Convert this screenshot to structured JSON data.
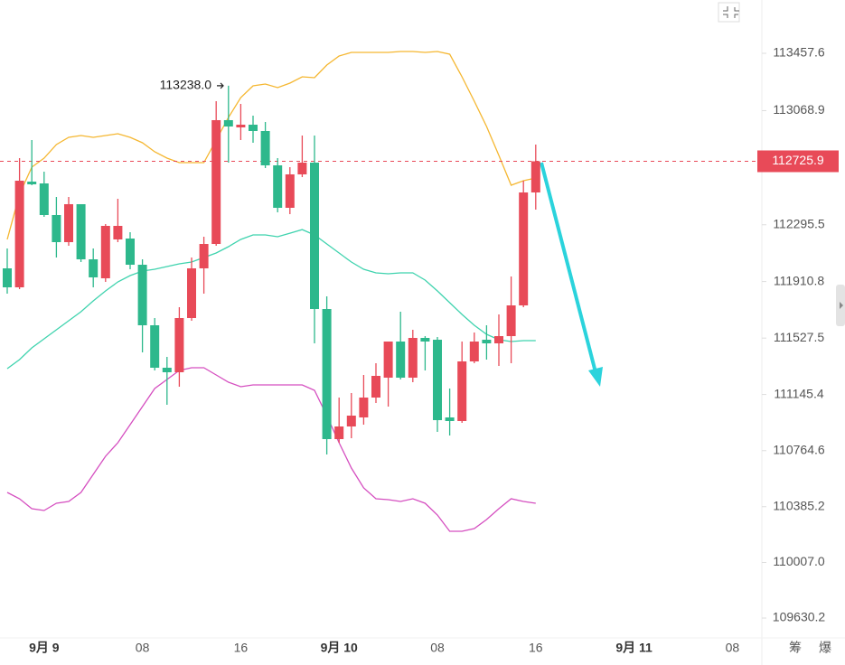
{
  "chart_data": {
    "type": "candlestick",
    "categories": [
      null,
      null,
      null,
      "9月 9",
      null,
      null,
      null,
      null,
      null,
      null,
      null,
      "08",
      null,
      null,
      null,
      null,
      null,
      null,
      null,
      "16",
      null,
      null,
      null,
      null,
      null,
      null,
      null,
      "9月 10",
      null,
      null,
      null,
      null,
      null,
      null,
      null,
      "08",
      null,
      null,
      null,
      null,
      null,
      null,
      null,
      "16",
      null,
      null,
      null,
      null,
      null,
      null,
      null,
      "9月 11",
      null,
      null,
      null,
      null,
      null,
      null,
      null,
      "08",
      null,
      null
    ],
    "open": [
      112000.2,
      111871.6,
      112588.1,
      112575.8,
      112361.5,
      112177.8,
      112435.0,
      112061.4,
      111932.8,
      112196.2,
      112202.3,
      112024.7,
      111614.4,
      111326.6,
      111296.0,
      111663.4,
      112000.2,
      112165.5,
      113004.5,
      112955.5,
      112973.8,
      112931.0,
      112698.3,
      112410.5,
      112637.1,
      112716.7,
      111724.6,
      110842.9,
      110928.6,
      110989.8,
      111124.5,
      111259.3,
      111504.2,
      111259.3,
      111528.7,
      111516.4,
      110989.8,
      110965.3,
      111369.5,
      111516.4,
      111491.9,
      111540.9,
      111749.1,
      112514.6,
      null,
      null,
      null,
      null,
      null,
      null,
      null,
      null,
      null,
      null,
      null,
      null,
      null,
      null,
      null,
      null,
      null,
      null
    ],
    "high": [
      112134.9,
      112747.3,
      112869.7,
      112655.4,
      112484.0,
      112484.0,
      112435.0,
      112134.9,
      112300.3,
      112471.7,
      112245.1,
      112061.4,
      111663.4,
      111400.1,
      111736.9,
      112073.7,
      112214.5,
      113133.1,
      113238.0,
      113114.7,
      113035.1,
      112992.2,
      112747.3,
      112686.0,
      112900.4,
      112900.4,
      111810.4,
      111124.5,
      111155.2,
      111277.7,
      111357.2,
      111504.2,
      111706.3,
      111583.8,
      111540.9,
      111534.8,
      111185.8,
      111504.2,
      111565.4,
      111614.4,
      111687.9,
      111945.1,
      112594.2,
      112839.1,
      null,
      null,
      null,
      null,
      null,
      null,
      null,
      null,
      null,
      null,
      null,
      null,
      null,
      null,
      null,
      null,
      null,
      null
    ],
    "low": [
      111828.7,
      111859.4,
      112563.6,
      112349.2,
      112073.7,
      112153.3,
      112043.1,
      111871.6,
      111908.4,
      112177.8,
      111994.1,
      111430.7,
      111308.3,
      111075.6,
      111198.0,
      111645.0,
      111828.7,
      112153.3,
      112716.7,
      112869.7,
      112851.4,
      112679.9,
      112379.9,
      112367.6,
      112618.7,
      111491.9,
      110738.8,
      110818.4,
      110849.0,
      110940.8,
      111087.8,
      111063.3,
      111247.0,
      111228.6,
      111308.3,
      110891.9,
      110867.4,
      110953.1,
      111357.2,
      111381.7,
      111338.9,
      111357.2,
      111736.9,
      112398.2,
      null,
      null,
      null,
      null,
      null,
      null,
      null,
      null,
      null,
      null,
      null,
      null,
      null,
      null,
      null,
      null,
      null,
      null
    ],
    "close": [
      111871.6,
      112594.2,
      112569.7,
      112361.5,
      112177.8,
      112435.0,
      112061.4,
      111939.0,
      112288.0,
      112288.0,
      112024.7,
      111614.4,
      111326.6,
      111296.0,
      111663.4,
      112000.2,
      112165.5,
      113004.5,
      112961.6,
      112973.8,
      112931.0,
      112698.3,
      112410.5,
      112637.1,
      112716.7,
      111724.6,
      110842.9,
      110928.6,
      111002.1,
      111124.5,
      111271.5,
      111504.2,
      111259.3,
      111528.7,
      111504.2,
      110971.5,
      110965.3,
      111369.5,
      111504.2,
      111491.9,
      111540.9,
      111749.1,
      112514.6,
      112725.9,
      null,
      null,
      null,
      null,
      null,
      null,
      null,
      null,
      null,
      null,
      null,
      null,
      null,
      null,
      null,
      null,
      null,
      null
    ],
    "up_color": "#e84a58",
    "down_color": "#2db88c",
    "bands": [
      {
        "color": "#f5b731",
        "values": [
          112196.2,
          112502.3,
          112686.0,
          112747.3,
          112839.1,
          112888.1,
          112900.4,
          112888.1,
          112900.4,
          112912.6,
          112888.1,
          112851.4,
          112790.1,
          112747.3,
          112716.7,
          112716.7,
          112716.7,
          112869.7,
          113022.8,
          113157.5,
          113237.2,
          113249.4,
          113224.9,
          113255.5,
          113298.4,
          113292.3,
          113378.0,
          113439.2,
          113463.7,
          113463.7,
          113463.7,
          113463.7,
          113469.8,
          113469.8,
          113463.7,
          113469.8,
          113451.5,
          113298.4,
          113133.1,
          112961.6,
          112765.6,
          112563.6,
          112594.2,
          112612.6,
          null,
          null,
          null,
          null,
          null,
          null,
          null,
          null,
          null,
          null,
          null,
          null,
          null,
          null,
          null,
          null,
          null,
          null
        ]
      },
      {
        "color": "#3fd3ae",
        "values": [
          111320.5,
          111381.7,
          111461.3,
          111522.6,
          111583.8,
          111645.0,
          111706.3,
          111779.8,
          111847.2,
          111908.4,
          111951.3,
          111981.9,
          111994.1,
          112012.5,
          112030.8,
          112043.1,
          112073.7,
          112104.3,
          112147.2,
          112196.2,
          112226.5,
          112226.5,
          112214.5,
          112238.7,
          112263.2,
          112226.5,
          112165.5,
          112104.3,
          112043.1,
          111994.1,
          111969.6,
          111963.5,
          111969.6,
          111969.6,
          111920.7,
          111847.2,
          111767.6,
          111687.9,
          111614.4,
          111553.2,
          111516.4,
          111504.2,
          111510.3,
          111510.3,
          null,
          null,
          null,
          null,
          null,
          null,
          null,
          null,
          null,
          null,
          null,
          null,
          null,
          null,
          null,
          null,
          null,
          null
        ]
      },
      {
        "color": "#d54fc0",
        "values": [
          110481.6,
          110438.7,
          110371.4,
          110359.1,
          110408.1,
          110420.4,
          110481.6,
          110604.0,
          110726.5,
          110818.4,
          110940.8,
          111063.3,
          111185.8,
          111247.0,
          111308.3,
          111326.6,
          111326.6,
          111277.7,
          111228.6,
          111198.0,
          111210.2,
          111210.2,
          111210.2,
          111210.2,
          111210.2,
          111173.6,
          111002.1,
          110818.4,
          110646.9,
          110512.2,
          110438.7,
          110432.6,
          110420.4,
          110438.7,
          110408.1,
          110328.5,
          110218.3,
          110218.3,
          110236.6,
          110297.9,
          110371.4,
          110438.7,
          110420.4,
          110408.1,
          null,
          null,
          null,
          null,
          null,
          null,
          null,
          null,
          null,
          null,
          null,
          null,
          null,
          null,
          null,
          null,
          null,
          null
        ]
      }
    ],
    "ylim": [
      109501.8,
      113818.9
    ],
    "yticks": [
      109630.2,
      {
        "value": 110007.0,
        "label": "110007.0"
      },
      110385.2,
      110764.6,
      111145.4,
      111527.5,
      111910.8,
      112295.5,
      113068.9,
      113457.6
    ],
    "last_price": 112725.9,
    "high_annotation": {
      "value": 113238.0,
      "label": "113238.0"
    },
    "footer_buttons": [
      "筹",
      "爆"
    ]
  }
}
